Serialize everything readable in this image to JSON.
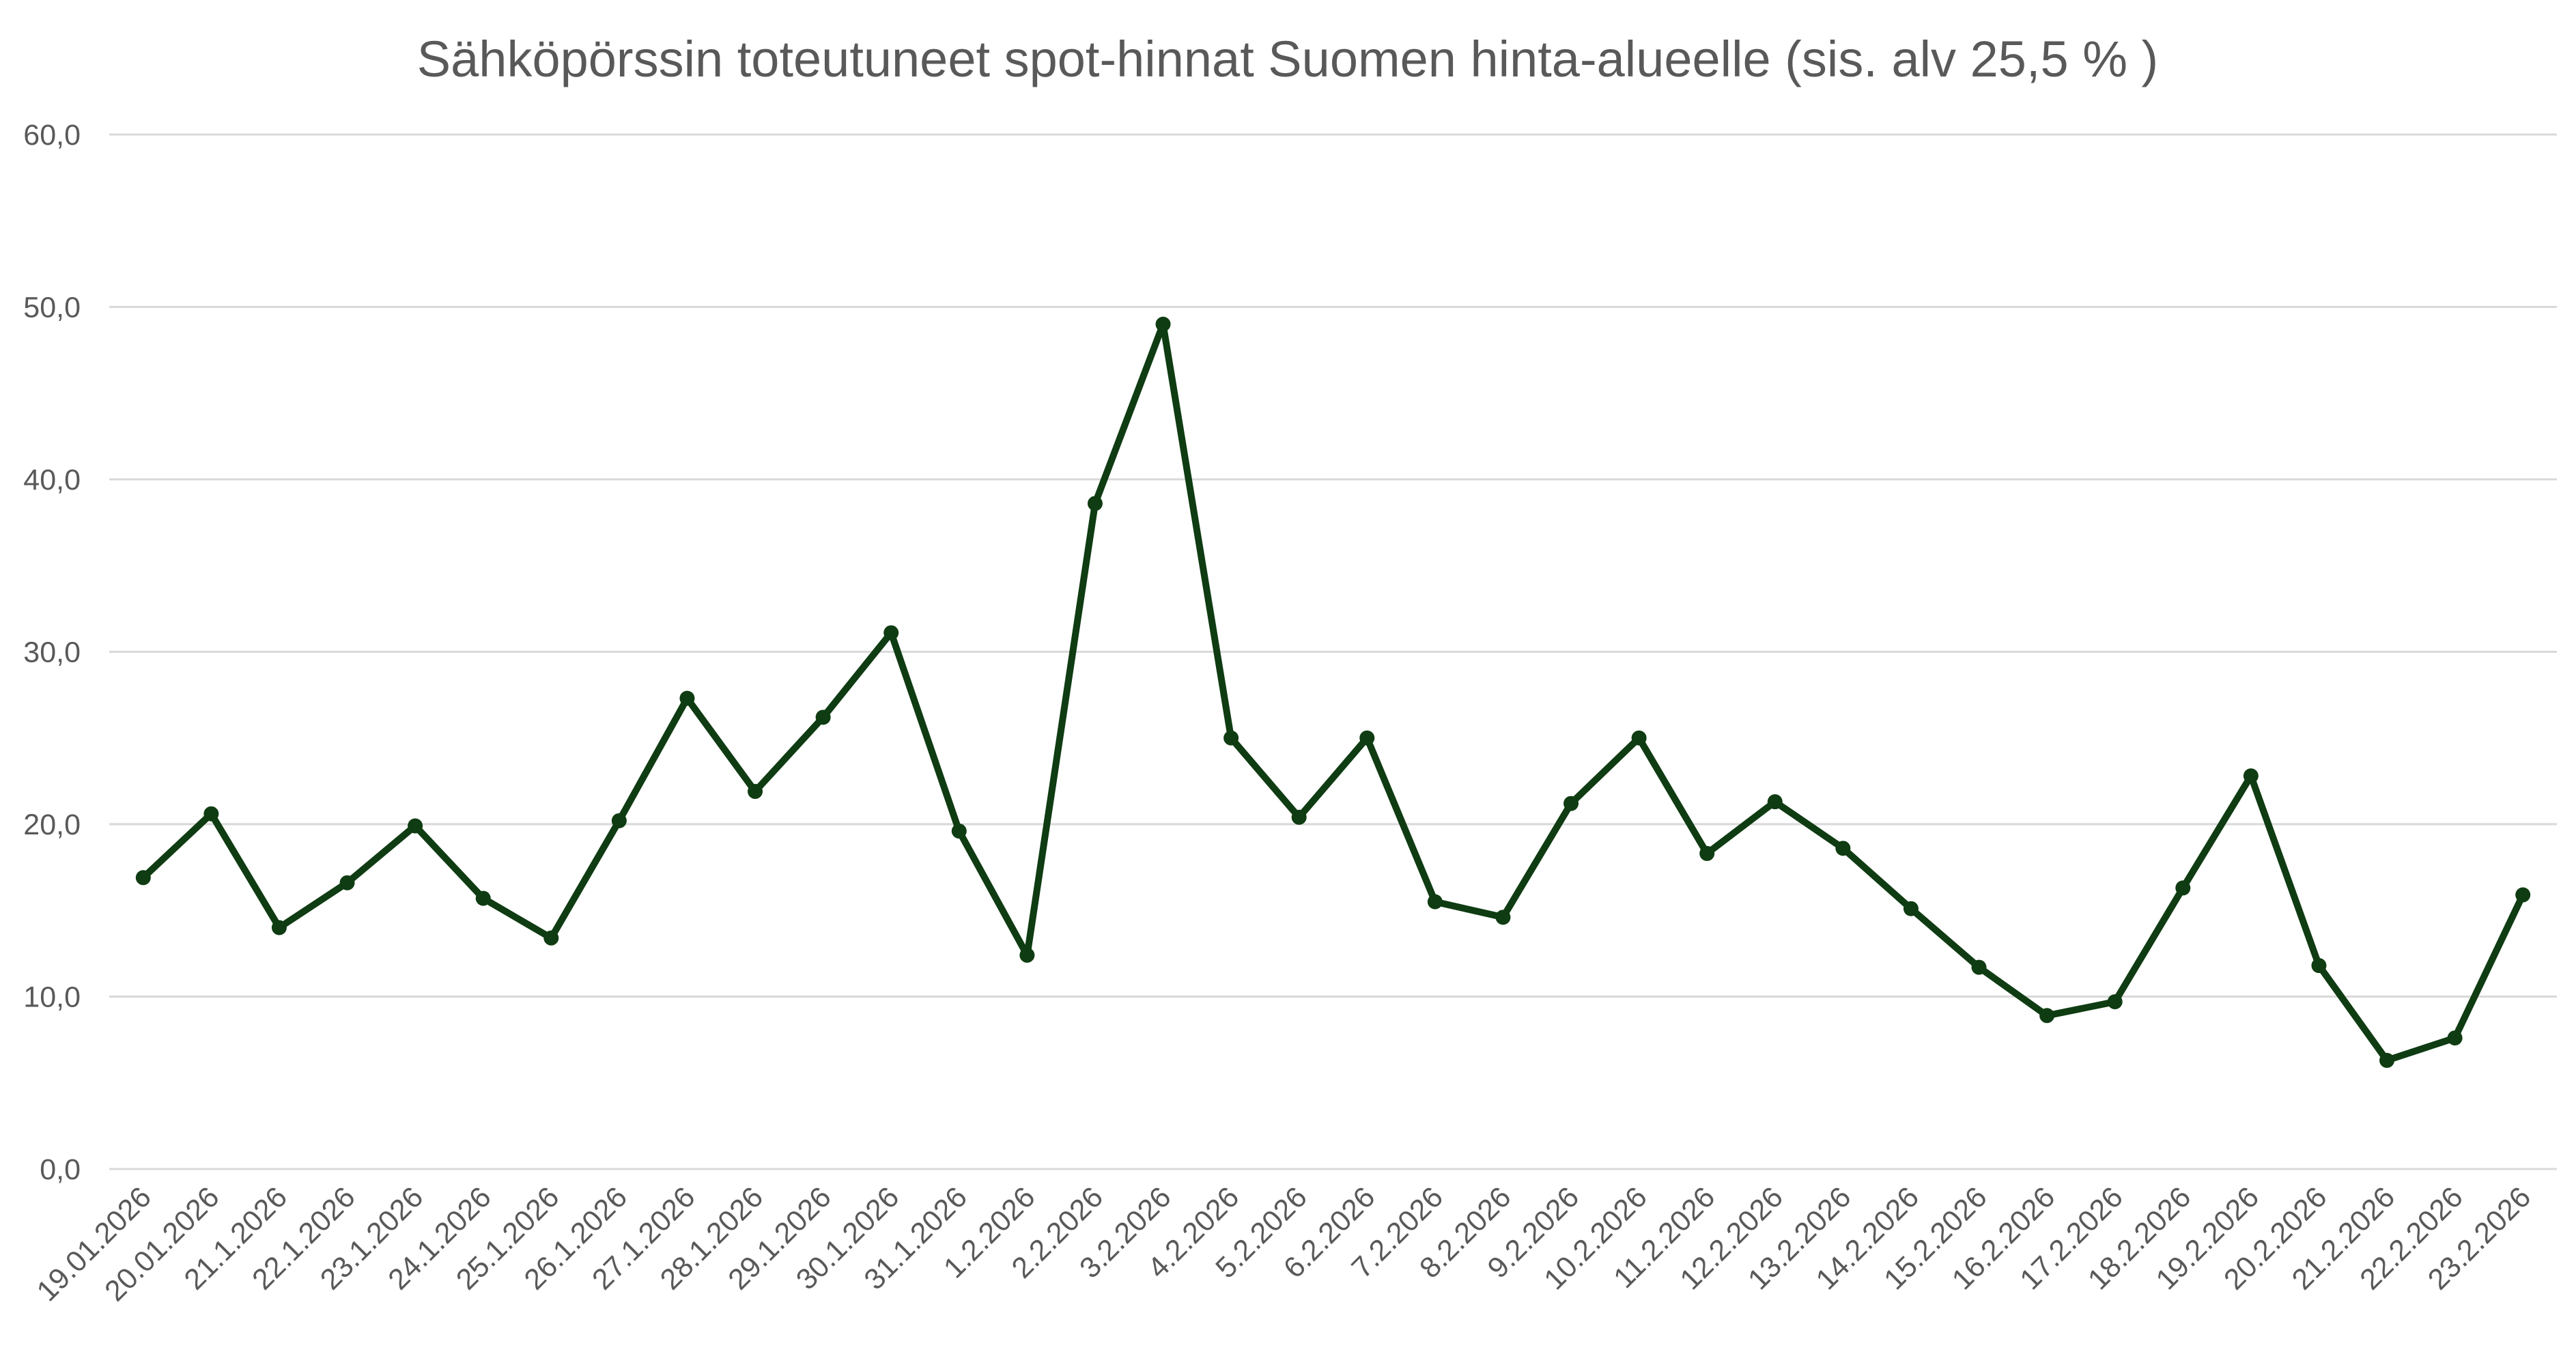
{
  "chart_data": {
    "type": "line",
    "title": "Sähköpörssin toteutuneet spot-hinnat Suomen hinta-alueelle (sis. alv 25,5 % )",
    "xlabel": "",
    "ylabel": "",
    "ylim": [
      0,
      60
    ],
    "y_ticks": [
      "0,0",
      "10,0",
      "20,0",
      "30,0",
      "40,0",
      "50,0",
      "60,0"
    ],
    "y_tick_values": [
      0,
      10,
      20,
      30,
      40,
      50,
      60
    ],
    "grid": true,
    "legend": "none",
    "categories": [
      "19.01.2026",
      "20.01.2026",
      "21.1.2026",
      "22.1.2026",
      "23.1.2026",
      "24.1.2026",
      "25.1.2026",
      "26.1.2026",
      "27.1.2026",
      "28.1.2026",
      "29.1.2026",
      "30.1.2026",
      "31.1.2026",
      "1.2.2026",
      "2.2.2026",
      "3.2.2026",
      "4.2.2026",
      "5.2.2026",
      "6.2.2026",
      "7.2.2026",
      "8.2.2026",
      "9.2.2026",
      "10.2.2026",
      "11.2.2026",
      "12.2.2026",
      "13.2.2026",
      "14.2.2026",
      "15.2.2026",
      "16.2.2026",
      "17.2.2026",
      "18.2.2026",
      "19.2.2026",
      "20.2.2026",
      "21.2.2026",
      "22.2.2026",
      "23.2.2026"
    ],
    "series": [
      {
        "values": [
          16.9,
          20.6,
          14.0,
          16.6,
          19.9,
          15.7,
          13.4,
          20.2,
          27.3,
          21.9,
          26.2,
          31.1,
          19.6,
          12.4,
          38.6,
          49.0,
          25.0,
          20.4,
          25.0,
          15.5,
          14.6,
          21.2,
          25.0,
          18.3,
          21.3,
          18.6,
          15.1,
          11.7,
          8.9,
          9.7,
          16.3,
          22.8,
          11.8,
          6.3,
          7.6,
          15.9
        ]
      }
    ],
    "colors": {
      "line": "#0f3c12",
      "marker": "#0f3c12",
      "grid": "#d9d9d9",
      "text": "#595959"
    }
  }
}
